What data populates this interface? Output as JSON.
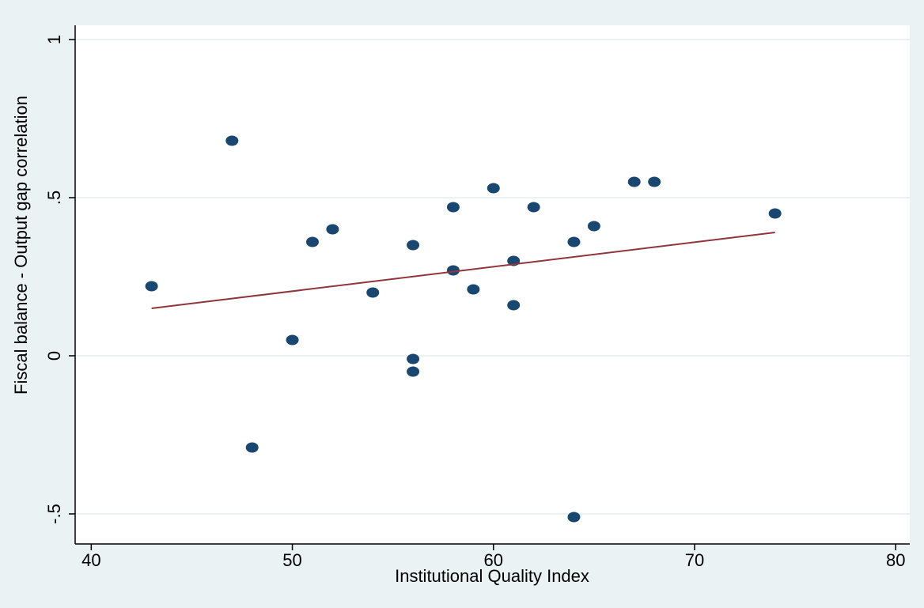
{
  "chart_data": {
    "type": "scatter",
    "x_label": "Institutional Quality Index",
    "y_label": "Fiscal balance - Output gap correlation",
    "xlim": [
      39.2,
      80.7
    ],
    "xticks": [
      40,
      50,
      60,
      70,
      80
    ],
    "ylim": [
      -0.595,
      1.045
    ],
    "yticks": [
      {
        "value": -0.5,
        "label": "-.5"
      },
      0,
      {
        "value": 0.5,
        "label": ".5"
      },
      1
    ],
    "grid": true,
    "series": [
      {
        "type": "scatter",
        "color": "#1a476f",
        "x": [
          43,
          47,
          48,
          50,
          51,
          52,
          54,
          56,
          56,
          56,
          58,
          58,
          59,
          60,
          61,
          61,
          62,
          64,
          64,
          65,
          67,
          68,
          74
        ],
        "values": [
          0.22,
          0.68,
          -0.29,
          0.05,
          0.36,
          0.4,
          0.2,
          0.35,
          -0.01,
          -0.05,
          0.47,
          0.27,
          0.21,
          0.53,
          0.3,
          0.16,
          0.47,
          0.36,
          -0.51,
          0.41,
          0.55,
          0.55,
          0.45
        ]
      },
      {
        "type": "line",
        "color": "#90353b",
        "x": [
          43,
          74
        ],
        "values": [
          0.15,
          0.39
        ]
      }
    ]
  }
}
